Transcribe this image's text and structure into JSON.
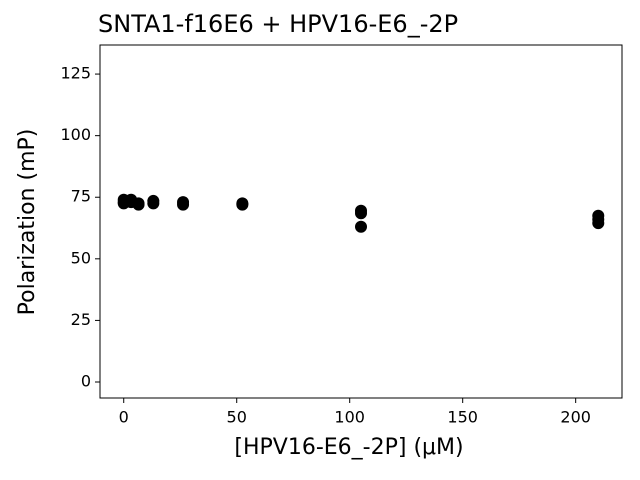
{
  "chart_data": {
    "type": "scatter",
    "title": "SNTA1-f16E6 + HPV16-E6_-2P",
    "x_label": "[HPV16-E6_-2P] (μM)",
    "y_label": "Polarization (mP)",
    "x": [
      0,
      0,
      0,
      3.28,
      3.28,
      6.56,
      6.56,
      13.1,
      13.1,
      26.25,
      26.25,
      52.5,
      52.5,
      105,
      105,
      105,
      210,
      210,
      210
    ],
    "values": [
      73,
      72.5,
      74,
      74,
      73,
      72.5,
      72,
      73.5,
      72.5,
      73,
      72,
      72.5,
      72,
      69.5,
      68.5,
      63,
      67.5,
      66,
      64.5
    ],
    "color": "#000000",
    "xlim": [
      -10.5,
      220.5
    ],
    "ylim": [
      -6.5,
      136.8
    ],
    "xticks": [
      0,
      50,
      100,
      150,
      200
    ],
    "yticks": [
      0,
      25,
      50,
      75,
      100,
      125
    ]
  }
}
